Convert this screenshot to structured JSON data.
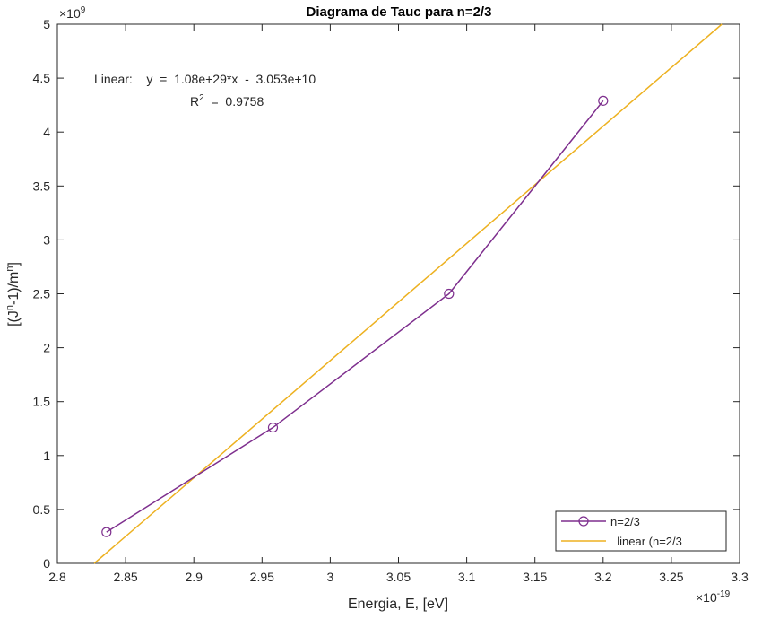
{
  "chart_data": {
    "type": "line",
    "title": "Diagrama de Tauc para n=2/3",
    "xlabel": "Energia, E, [eV]",
    "ylabel_parts": {
      "pre": "[(J",
      "sup1": "n",
      "mid": "-1)/m",
      "sup2": "n",
      "post": "]"
    },
    "x_multiplier": {
      "base": "×10",
      "exp": "-19"
    },
    "y_multiplier": {
      "base": "×10",
      "exp": "9"
    },
    "xlim": [
      2.8,
      3.3
    ],
    "ylim": [
      0,
      5
    ],
    "x_ticks": [
      2.8,
      2.85,
      2.9,
      2.95,
      3.0,
      3.05,
      3.1,
      3.15,
      3.2,
      3.25,
      3.3
    ],
    "x_tick_labels": [
      "2.8",
      "2.85",
      "2.9",
      "2.95",
      "3",
      "3.05",
      "3.1",
      "3.15",
      "3.2",
      "3.25",
      "3.3"
    ],
    "y_ticks": [
      0,
      0.5,
      1,
      1.5,
      2,
      2.5,
      3,
      3.5,
      4,
      4.5,
      5
    ],
    "y_tick_labels": [
      "0",
      "0.5",
      "1",
      "1.5",
      "2",
      "2.5",
      "3",
      "3.5",
      "4",
      "4.5",
      "5"
    ],
    "grid": false,
    "legend_position": "bottom-right",
    "series": [
      {
        "name": "n=2/3",
        "color": "#7E2F8E",
        "marker": "circle",
        "x": [
          2.836,
          2.958,
          3.087,
          3.2
        ],
        "y": [
          0.29,
          1.26,
          2.5,
          4.29
        ]
      },
      {
        "name": "  linear (n=2/3",
        "color": "#EDB120",
        "marker": "none",
        "x": [
          2.827,
          3.287
        ],
        "y": [
          0.0,
          5.0
        ]
      }
    ],
    "annotation": {
      "line1": "Linear:    y  =  1.08e+29*x  -  3.053e+10",
      "line2_pre": "R",
      "line2_sup": "2",
      "line2_post": "  =  0.9758"
    }
  }
}
